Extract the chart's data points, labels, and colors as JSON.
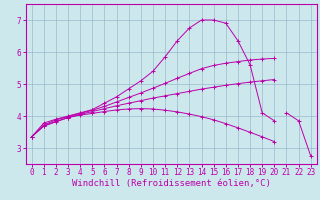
{
  "bg_color": "#cce8ed",
  "grid_color": "#99bbcc",
  "line_color": "#bb00aa",
  "xlabel": "Windchill (Refroidissement éolien,°C)",
  "xlabel_fontsize": 6.5,
  "tick_fontsize": 5.5,
  "xlim": [
    -0.5,
    23.5
  ],
  "ylim": [
    2.5,
    7.5
  ],
  "yticks": [
    3,
    4,
    5,
    6,
    7
  ],
  "xticks": [
    0,
    1,
    2,
    3,
    4,
    5,
    6,
    7,
    8,
    9,
    10,
    11,
    12,
    13,
    14,
    15,
    16,
    17,
    18,
    19,
    20,
    21,
    22,
    23
  ],
  "curves": [
    {
      "x": [
        0,
        1,
        2,
        3,
        4,
        5,
        6,
        7,
        8,
        9,
        10,
        11,
        12,
        13,
        14,
        15,
        16,
        17,
        18,
        19,
        20
      ],
      "y": [
        3.35,
        3.78,
        3.9,
        4.0,
        4.1,
        4.2,
        4.4,
        4.6,
        4.85,
        5.1,
        5.4,
        5.85,
        6.35,
        6.75,
        7.0,
        7.0,
        6.9,
        6.35,
        5.6,
        4.1,
        3.85
      ]
    },
    {
      "x": [
        0,
        1,
        2,
        3,
        4,
        5,
        6,
        7,
        8,
        9,
        10,
        11,
        12,
        13,
        14,
        15,
        16,
        17,
        18,
        19,
        20
      ],
      "y": [
        3.35,
        3.72,
        3.88,
        3.98,
        4.08,
        4.18,
        4.3,
        4.44,
        4.58,
        4.72,
        4.87,
        5.02,
        5.18,
        5.33,
        5.48,
        5.58,
        5.65,
        5.7,
        5.75,
        5.78,
        5.8
      ]
    },
    {
      "x": [
        0,
        1,
        2,
        3,
        4,
        5,
        6,
        7,
        8,
        9,
        10,
        11,
        12,
        13,
        14,
        15,
        16,
        17,
        18,
        19,
        20
      ],
      "y": [
        3.35,
        3.7,
        3.83,
        3.95,
        4.05,
        4.14,
        4.23,
        4.32,
        4.4,
        4.48,
        4.56,
        4.63,
        4.7,
        4.77,
        4.84,
        4.9,
        4.96,
        5.01,
        5.06,
        5.1,
        5.14
      ]
    },
    {
      "x": [
        0,
        1,
        2,
        3,
        4,
        5,
        6,
        7,
        8,
        9,
        10,
        11,
        12,
        13,
        14,
        15,
        16,
        17,
        18,
        19,
        20,
        21,
        22,
        23
      ],
      "y": [
        3.35,
        3.68,
        3.82,
        3.95,
        4.03,
        4.08,
        4.14,
        4.19,
        4.22,
        4.23,
        4.22,
        4.18,
        4.13,
        4.06,
        3.98,
        3.88,
        3.76,
        3.63,
        3.49,
        3.35,
        3.2,
        null,
        null,
        null
      ]
    },
    {
      "x": [
        21,
        22,
        23
      ],
      "y": [
        4.1,
        3.85,
        2.75
      ]
    }
  ]
}
